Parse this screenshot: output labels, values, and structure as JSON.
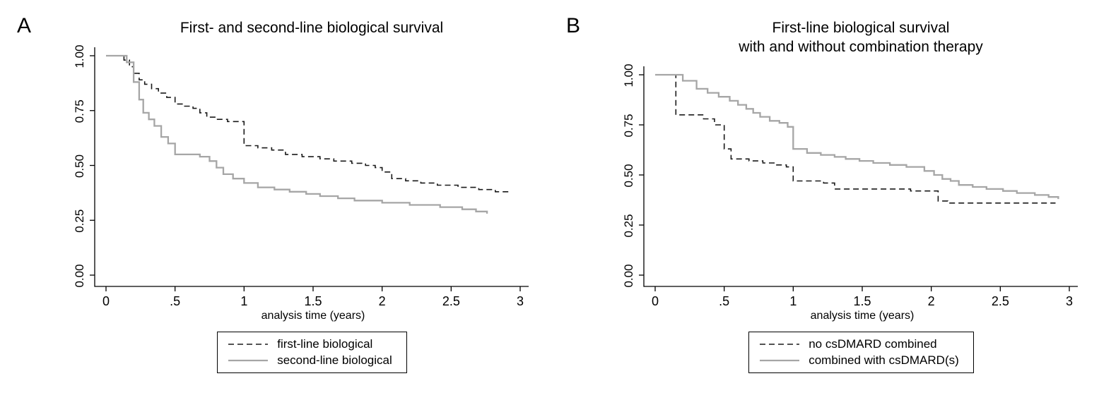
{
  "figure": {
    "background": "#ffffff",
    "panel_labels": [
      "A",
      "B"
    ]
  },
  "style": {
    "axis_color": "#000000",
    "text_color": "#000000",
    "dashed_color": "#1a1a1a",
    "gray_color": "#a6a6a6",
    "legend_border_color": "#000000"
  },
  "chart_data": [
    {
      "type": "line",
      "subtype": "kaplan-meier-step",
      "panel_label": "A",
      "title_lines": [
        "First- and second-line biological survival"
      ],
      "xlabel": "analysis time (years)",
      "ylabel": "",
      "grid": false,
      "legend_position": "bottom",
      "xlim": [
        0,
        3
      ],
      "ylim": [
        0,
        1
      ],
      "x_ticks": [
        0,
        0.5,
        1,
        1.5,
        2,
        2.5,
        3
      ],
      "x_tick_labels": [
        "0",
        ".5",
        "1",
        "1.5",
        "2",
        "2.5",
        "3"
      ],
      "y_ticks": [
        0,
        0.25,
        0.5,
        0.75,
        1
      ],
      "y_tick_labels": [
        "0.00",
        "0.25",
        "0.50",
        "0.75",
        "1.00"
      ],
      "series": [
        {
          "name": "first-line biological",
          "style": "dashed",
          "color_key": "dashed_color",
          "points": [
            [
              0,
              1.0
            ],
            [
              0.13,
              0.98
            ],
            [
              0.17,
              0.95
            ],
            [
              0.2,
              0.92
            ],
            [
              0.24,
              0.89
            ],
            [
              0.28,
              0.87
            ],
            [
              0.33,
              0.85
            ],
            [
              0.38,
              0.83
            ],
            [
              0.44,
              0.81
            ],
            [
              0.5,
              0.78
            ],
            [
              0.57,
              0.77
            ],
            [
              0.63,
              0.76
            ],
            [
              0.68,
              0.74
            ],
            [
              0.73,
              0.72
            ],
            [
              0.8,
              0.71
            ],
            [
              0.88,
              0.7
            ],
            [
              1.0,
              0.59
            ],
            [
              1.1,
              0.58
            ],
            [
              1.2,
              0.57
            ],
            [
              1.3,
              0.55
            ],
            [
              1.42,
              0.54
            ],
            [
              1.55,
              0.53
            ],
            [
              1.65,
              0.52
            ],
            [
              1.78,
              0.51
            ],
            [
              1.88,
              0.5
            ],
            [
              1.95,
              0.49
            ],
            [
              2.0,
              0.47
            ],
            [
              2.07,
              0.44
            ],
            [
              2.17,
              0.43
            ],
            [
              2.28,
              0.42
            ],
            [
              2.4,
              0.41
            ],
            [
              2.55,
              0.4
            ],
            [
              2.7,
              0.39
            ],
            [
              2.82,
              0.38
            ],
            [
              2.92,
              0.37
            ]
          ]
        },
        {
          "name": "second-line biological",
          "style": "solid",
          "color_key": "gray_color",
          "points": [
            [
              0,
              1.0
            ],
            [
              0.15,
              0.97
            ],
            [
              0.2,
              0.88
            ],
            [
              0.24,
              0.8
            ],
            [
              0.27,
              0.74
            ],
            [
              0.31,
              0.71
            ],
            [
              0.35,
              0.68
            ],
            [
              0.4,
              0.63
            ],
            [
              0.45,
              0.6
            ],
            [
              0.5,
              0.55
            ],
            [
              0.68,
              0.54
            ],
            [
              0.75,
              0.52
            ],
            [
              0.8,
              0.49
            ],
            [
              0.85,
              0.46
            ],
            [
              0.92,
              0.44
            ],
            [
              1.0,
              0.42
            ],
            [
              1.1,
              0.4
            ],
            [
              1.22,
              0.39
            ],
            [
              1.33,
              0.38
            ],
            [
              1.45,
              0.37
            ],
            [
              1.55,
              0.36
            ],
            [
              1.68,
              0.35
            ],
            [
              1.8,
              0.34
            ],
            [
              2.0,
              0.33
            ],
            [
              2.2,
              0.32
            ],
            [
              2.42,
              0.31
            ],
            [
              2.58,
              0.3
            ],
            [
              2.68,
              0.29
            ],
            [
              2.76,
              0.28
            ]
          ]
        }
      ]
    },
    {
      "type": "line",
      "subtype": "kaplan-meier-step",
      "panel_label": "B",
      "title_lines": [
        "First-line biological survival",
        "with and without combination therapy"
      ],
      "xlabel": "analysis time (years)",
      "ylabel": "",
      "grid": false,
      "legend_position": "bottom",
      "xlim": [
        0,
        3
      ],
      "ylim": [
        0,
        1
      ],
      "x_ticks": [
        0,
        0.5,
        1,
        1.5,
        2,
        2.5,
        3
      ],
      "x_tick_labels": [
        "0",
        ".5",
        "1",
        "1.5",
        "2",
        "2.5",
        "3"
      ],
      "y_ticks": [
        0,
        0.25,
        0.5,
        0.75,
        1
      ],
      "y_tick_labels": [
        "0.00",
        "0.25",
        "0.50",
        "0.75",
        "1.00"
      ],
      "series": [
        {
          "name": "no csDMARD combined",
          "style": "dashed",
          "color_key": "dashed_color",
          "points": [
            [
              0,
              1.0
            ],
            [
              0.15,
              0.8
            ],
            [
              0.35,
              0.78
            ],
            [
              0.43,
              0.75
            ],
            [
              0.5,
              0.63
            ],
            [
              0.55,
              0.58
            ],
            [
              0.68,
              0.57
            ],
            [
              0.78,
              0.56
            ],
            [
              0.88,
              0.55
            ],
            [
              0.95,
              0.54
            ],
            [
              1.0,
              0.47
            ],
            [
              1.22,
              0.46
            ],
            [
              1.3,
              0.43
            ],
            [
              1.78,
              0.43
            ],
            [
              1.85,
              0.42
            ],
            [
              2.05,
              0.37
            ],
            [
              2.12,
              0.36
            ],
            [
              2.9,
              0.36
            ]
          ]
        },
        {
          "name": "combined with csDMARD(s)",
          "style": "solid",
          "color_key": "gray_color",
          "points": [
            [
              0,
              1.0
            ],
            [
              0.2,
              0.97
            ],
            [
              0.3,
              0.93
            ],
            [
              0.38,
              0.91
            ],
            [
              0.46,
              0.89
            ],
            [
              0.54,
              0.87
            ],
            [
              0.6,
              0.85
            ],
            [
              0.66,
              0.83
            ],
            [
              0.71,
              0.81
            ],
            [
              0.76,
              0.79
            ],
            [
              0.83,
              0.77
            ],
            [
              0.9,
              0.76
            ],
            [
              0.96,
              0.74
            ],
            [
              1.0,
              0.63
            ],
            [
              1.1,
              0.61
            ],
            [
              1.2,
              0.6
            ],
            [
              1.3,
              0.59
            ],
            [
              1.38,
              0.58
            ],
            [
              1.48,
              0.57
            ],
            [
              1.58,
              0.56
            ],
            [
              1.7,
              0.55
            ],
            [
              1.82,
              0.54
            ],
            [
              1.95,
              0.52
            ],
            [
              2.02,
              0.5
            ],
            [
              2.08,
              0.48
            ],
            [
              2.14,
              0.47
            ],
            [
              2.2,
              0.45
            ],
            [
              2.3,
              0.44
            ],
            [
              2.4,
              0.43
            ],
            [
              2.52,
              0.42
            ],
            [
              2.62,
              0.41
            ],
            [
              2.75,
              0.4
            ],
            [
              2.85,
              0.39
            ],
            [
              2.92,
              0.38
            ]
          ]
        }
      ]
    }
  ]
}
